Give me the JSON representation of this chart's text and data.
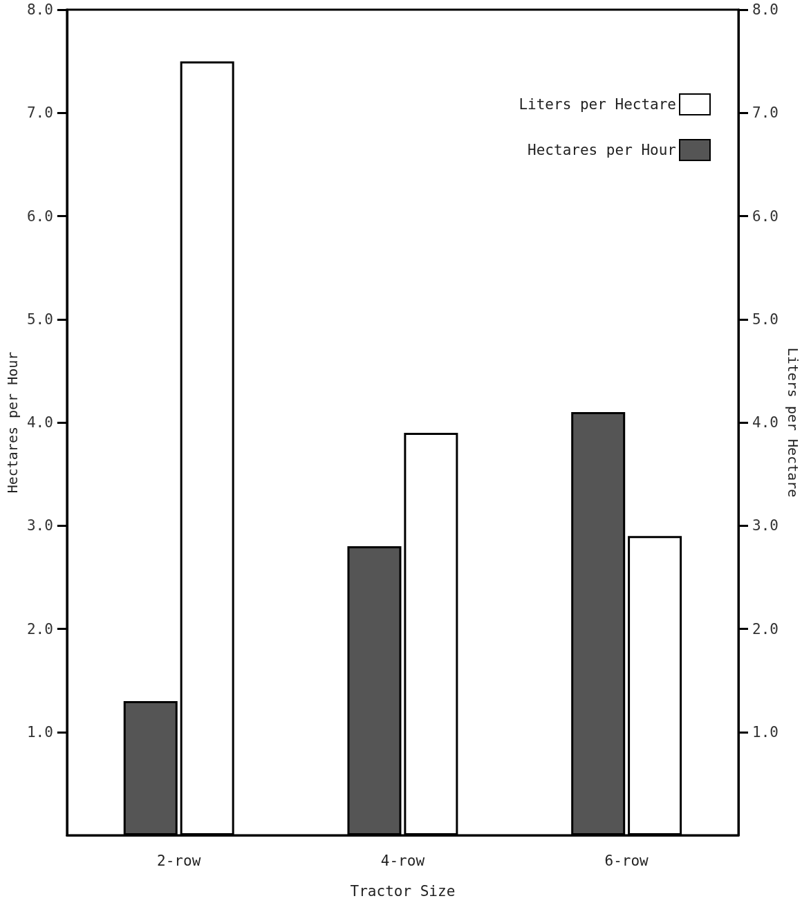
{
  "chart_data": {
    "type": "bar",
    "xlabel": "Tractor Size",
    "ylabel": "Hectares per Hour",
    "y2label": "Liters per Hectare",
    "categories": [
      "2-row",
      "4-row",
      "6-row"
    ],
    "series": [
      {
        "name": "Hectares per Hour",
        "color": "#555555",
        "values": [
          1.3,
          2.8,
          4.1
        ]
      },
      {
        "name": "Liters per Hectare",
        "color": "#ffffff",
        "axis": "y2",
        "values": [
          7.5,
          3.9,
          2.9
        ]
      }
    ],
    "ylim": [
      0,
      8
    ],
    "yticks": [
      {
        "value": 1,
        "label": "1.0"
      },
      {
        "value": 2,
        "label": "2.0"
      },
      {
        "value": 3,
        "label": "3.0"
      },
      {
        "value": 4,
        "label": "4.0"
      },
      {
        "value": 5,
        "label": "5.0"
      },
      {
        "value": 6,
        "label": "6.0"
      },
      {
        "value": 7,
        "label": "7.0"
      },
      {
        "value": 8,
        "label": "8.0"
      }
    ],
    "y2lim": [
      0,
      8
    ],
    "y2ticks": [
      {
        "value": 1,
        "label": "1.0"
      },
      {
        "value": 2,
        "label": "2.0"
      },
      {
        "value": 3,
        "label": "3.0"
      },
      {
        "value": 4,
        "label": "4.0"
      },
      {
        "value": 5,
        "label": "5.0"
      },
      {
        "value": 6,
        "label": "6.0"
      },
      {
        "value": 7,
        "label": "7.0"
      },
      {
        "value": 8,
        "label": "8.0"
      }
    ],
    "grid": false,
    "legend": "top right"
  }
}
